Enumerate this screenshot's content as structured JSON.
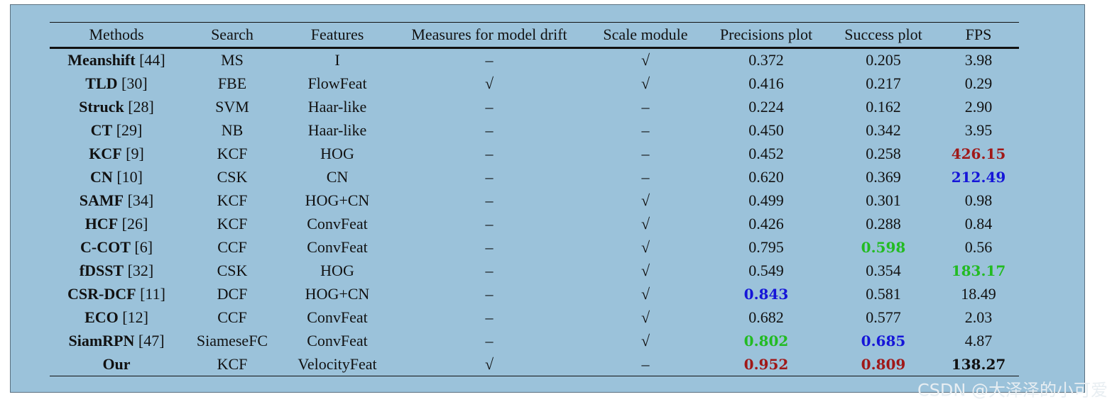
{
  "table": {
    "header": [
      "Methods",
      "Search",
      "Features",
      "Measures for model drift",
      "Scale module",
      "Precisions plot",
      "Success plot",
      "FPS"
    ],
    "rows": [
      [
        {
          "name": "Meanshift",
          "ref": "[44]"
        },
        "MS",
        "I",
        "–",
        "√",
        "0.372",
        "0.205",
        "3.98"
      ],
      [
        {
          "name": "TLD",
          "ref": "[30]"
        },
        "FBE",
        "FlowFeat",
        "√",
        "√",
        "0.416",
        "0.217",
        "0.29"
      ],
      [
        {
          "name": "Struck",
          "ref": "[28]"
        },
        "SVM",
        "Haar-like",
        "–",
        "–",
        "0.224",
        "0.162",
        "2.90"
      ],
      [
        {
          "name": "CT",
          "ref": "[29]"
        },
        "NB",
        "Haar-like",
        "–",
        "–",
        "0.450",
        "0.342",
        "3.95"
      ],
      [
        {
          "name": "KCF",
          "ref": "[9]"
        },
        "KCF",
        "HOG",
        "–",
        "–",
        "0.452",
        "0.258",
        {
          "text": "426.15",
          "color": "#a01818"
        }
      ],
      [
        {
          "name": "CN",
          "ref": "[10]"
        },
        "CSK",
        "CN",
        "–",
        "–",
        "0.620",
        "0.369",
        {
          "text": "212.49",
          "color": "#1515d8"
        }
      ],
      [
        {
          "name": "SAMF",
          "ref": "[34]"
        },
        "KCF",
        "HOG+CN",
        "–",
        "√",
        "0.499",
        "0.301",
        "0.98"
      ],
      [
        {
          "name": "HCF",
          "ref": "[26]"
        },
        "KCF",
        "ConvFeat",
        "–",
        "√",
        "0.426",
        "0.288",
        "0.84"
      ],
      [
        {
          "name": "C-COT",
          "ref": "[6]"
        },
        "CCF",
        "ConvFeat",
        "–",
        "√",
        "0.795",
        {
          "text": "0.598",
          "color": "#22bb22"
        },
        "0.56"
      ],
      [
        {
          "name": "fDSST",
          "ref": "[32]"
        },
        "CSK",
        "HOG",
        "–",
        "√",
        "0.549",
        "0.354",
        {
          "text": "183.17",
          "color": "#22bb22"
        }
      ],
      [
        {
          "name": "CSR-DCF",
          "ref": "[11]"
        },
        "DCF",
        "HOG+CN",
        "–",
        "√",
        {
          "text": "0.843",
          "color": "#1515d8"
        },
        "0.581",
        "18.49"
      ],
      [
        {
          "name": "ECO",
          "ref": "[12]"
        },
        "CCF",
        "ConvFeat",
        "–",
        "√",
        "0.682",
        "0.577",
        "2.03"
      ],
      [
        {
          "name": "SiamRPN",
          "ref": "[47]"
        },
        "SiameseFC",
        "ConvFeat",
        "–",
        "√",
        {
          "text": "0.802",
          "color": "#22bb22"
        },
        {
          "text": "0.685",
          "color": "#1515d8"
        },
        "4.87"
      ],
      [
        {
          "name": "Our"
        },
        "KCF",
        "VelocityFeat",
        "√",
        "–",
        {
          "text": "0.952",
          "color": "#a01818"
        },
        {
          "text": "0.809",
          "color": "#a01818"
        },
        {
          "text": "138.27",
          "color": "#111111"
        }
      ]
    ]
  },
  "watermark": "CSDN @大泽泽的小可爱"
}
